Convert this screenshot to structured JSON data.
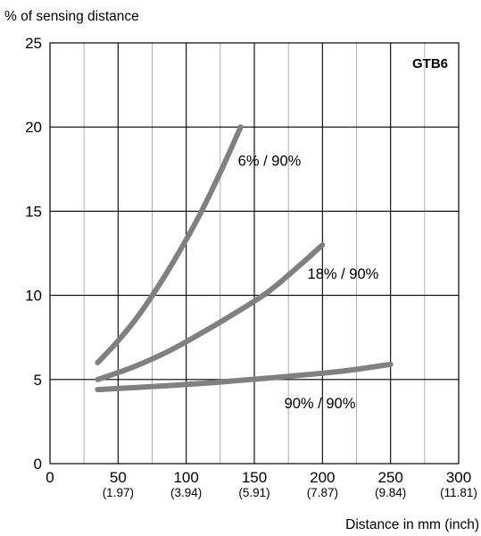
{
  "chart_data": {
    "type": "line",
    "title": "",
    "model_label": "GTB6",
    "ylabel": "% of sensing distance",
    "xlabel": "Distance in mm (inch)",
    "xlim": [
      0,
      300
    ],
    "ylim": [
      0,
      25
    ],
    "x_ticks": [
      {
        "value": 0,
        "label": "0",
        "sub": ""
      },
      {
        "value": 50,
        "label": "50",
        "sub": "(1.97)"
      },
      {
        "value": 100,
        "label": "100",
        "sub": "(3.94)"
      },
      {
        "value": 150,
        "label": "150",
        "sub": "(5.91)"
      },
      {
        "value": 200,
        "label": "200",
        "sub": "(7.87)"
      },
      {
        "value": 250,
        "label": "250",
        "sub": "(9.84)"
      },
      {
        "value": 300,
        "label": "300",
        "sub": "(11.81)"
      }
    ],
    "y_ticks": [
      {
        "value": 0,
        "label": "0"
      },
      {
        "value": 5,
        "label": "5"
      },
      {
        "value": 10,
        "label": "10"
      },
      {
        "value": 15,
        "label": "15"
      },
      {
        "value": 20,
        "label": "20"
      },
      {
        "value": 25,
        "label": "25"
      }
    ],
    "x_minor_step": 25,
    "grid": true,
    "line_color": "#808080",
    "series": [
      {
        "name": "6% / 90%",
        "label_anchor": {
          "x": 138,
          "y": 17.7
        },
        "x": [
          35,
          50,
          65,
          80,
          95,
          110,
          125,
          140
        ],
        "y": [
          6.0,
          7.3,
          8.8,
          10.6,
          12.6,
          14.8,
          17.3,
          20.0
        ]
      },
      {
        "name": "18% / 90%",
        "label_anchor": {
          "x": 189,
          "y": 11.0
        },
        "x": [
          35,
          60,
          85,
          110,
          135,
          160,
          185,
          200
        ],
        "y": [
          5.0,
          5.7,
          6.6,
          7.7,
          8.9,
          10.2,
          11.9,
          13.0
        ]
      },
      {
        "name": "90% / 90%",
        "label_anchor": {
          "x": 172,
          "y": 3.3
        },
        "x": [
          35,
          80,
          125,
          170,
          215,
          250
        ],
        "y": [
          4.4,
          4.6,
          4.85,
          5.15,
          5.5,
          5.9
        ]
      }
    ]
  }
}
